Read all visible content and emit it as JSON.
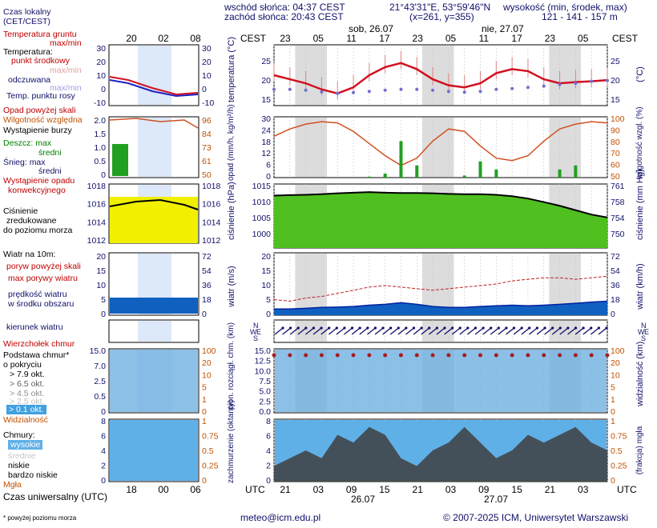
{
  "header": {
    "sunrise": "wschód słońca: 04:37 CEST",
    "sunset": "zachód słońca: 20:43 CEST",
    "coords": "21°43'31\"E, 53°59'46\"N",
    "grid": "(x=261,  y=355)",
    "elev_title": "wysokość (min, środek, max)",
    "elev_values": "121 - 141 - 157 m"
  },
  "left_legend": {
    "time_local": "Czas lokalny",
    "time_local2": "(CET/CEST)",
    "soil_temp": "Temperatura gruntu",
    "soil_minmax": "max/min",
    "temp_title": "Temperatura:",
    "temp_mid": "punkt środkowy",
    "temp_minmax": "max/min",
    "temp_felt": "odczuwana",
    "temp_felt_minmax": "max/min",
    "dewpoint": "Temp. punktu rosy",
    "precip_above": "Opad powyżej skali",
    "humidity": "Wilgotność względna",
    "storm": "Wystąpienie burzy",
    "rain_max": "Deszcz: max",
    "rain_mid": "średni",
    "snow_max": "Śnieg:  max",
    "snow_mid": "średni",
    "conv": "Wystąpienie opadu",
    "conv2": "konwekcyjnego",
    "pressure": "Ciśnienie",
    "pressure2": "zredukowane",
    "pressure3": "do poziomu morza",
    "wind_title": "Wiatr na 10m:",
    "gust_above": "poryw powyżej skali",
    "gust_max": "max porywy wiatru",
    "wind_speed": "prędkość wiatru",
    "wind_speed2": "w środku obszaru",
    "wind_dir": "kierunek wiatru",
    "cloud_top": "Wierzchołek chmur",
    "cloud_base": "Podstawa chmur*",
    "cloud_base2": "o pokryciu",
    "okt1": "> 7.9 okt.",
    "okt2": "> 6.5 okt.",
    "okt3": "> 4.5 okt.",
    "okt4": "> 2.5 okt.",
    "okt5": "> 0.1 okt.",
    "visibility": "Widzialność",
    "clouds": "Chmury:",
    "high": "wysokie",
    "mid": "średnie",
    "low": "niskie",
    "vlow": "bardzo niskie",
    "fog": "Mgła",
    "utc": "Czas uniwersalny (UTC)",
    "footnote": "* powyżej poziomu morza"
  },
  "top_axis": {
    "cest": "CEST",
    "day1": "sob, 26.07",
    "day2": "nie, 27.07",
    "hours": [
      "23",
      "05",
      "11",
      "17",
      "23",
      "05",
      "11",
      "17",
      "23",
      "05"
    ],
    "mini_hours": [
      "20",
      "02",
      "08"
    ]
  },
  "bottom_axis": {
    "utc": "UTC",
    "hours": [
      "21",
      "03",
      "09",
      "15",
      "21",
      "03",
      "09",
      "15",
      "21",
      "03"
    ],
    "date1": "26.07",
    "date2": "27.07",
    "mini_hours": [
      "18",
      "00",
      "06"
    ]
  },
  "axis_titles": {
    "temp_left": "temperatura (°C)",
    "temp_right": "(°C)",
    "precip_left": "opad (mm/h, kg/m²/h)",
    "precip_right": "wilgotność wzgl. (%)",
    "press_left": "ciśnienie (hPa)",
    "press_right": "ciśnienie (mm Hg)",
    "wind_left": "wiatr (m/s)",
    "wind_right": "wiatr (km/h)",
    "cloud_left": "pion. rozciągł. chm. (km)",
    "cloud_right": "widzialność (km)",
    "cover_left": "zachmurzenie (oktanty)",
    "cover_right": "(frakcja) mgła"
  },
  "ticks": {
    "temp_left": [
      "25",
      "20",
      "15"
    ],
    "temp_right": [
      "25",
      "20",
      "15"
    ],
    "mini_temp": [
      "30",
      "20",
      "10",
      "0",
      "-10"
    ],
    "precip_left": [
      "30",
      "24",
      "18",
      "12",
      "6",
      "0"
    ],
    "precip_right": [
      "100",
      "90",
      "80",
      "70",
      "60",
      "50"
    ],
    "mini_precip": [
      "2.0",
      "1.5",
      "1.0",
      "0.5",
      "0"
    ],
    "mini_hum": [
      "96",
      "84",
      "73",
      "61",
      "50"
    ],
    "press_left": [
      "1015",
      "1010",
      "1005",
      "1000"
    ],
    "press_right": [
      "761",
      "758",
      "754",
      "750"
    ],
    "mini_press": [
      "1018",
      "1016",
      "1014",
      "1012"
    ],
    "wind_left": [
      "20",
      "15",
      "10",
      "5",
      "0"
    ],
    "wind_right": [
      "72",
      "54",
      "36",
      "18",
      "0"
    ],
    "cloud_left": [
      "15.0",
      "12.5",
      "10.0",
      "7.5",
      "5.0",
      "2.5",
      "0.0"
    ],
    "cloud_right": [
      "100",
      "20",
      "10",
      "5",
      "1",
      "0"
    ],
    "mini_cloud": [
      "15.0",
      "7.0",
      "2.5",
      "0.5",
      "0"
    ],
    "cover_left": [
      "8",
      "6",
      "4",
      "2",
      "0"
    ],
    "cover_right": [
      "1",
      "0.75",
      "0.5",
      "0.25",
      "0"
    ],
    "compass": [
      "N",
      "W",
      "E",
      "S"
    ]
  },
  "footer": {
    "email": "meteo@icm.edu.pl",
    "copyright": "© 2007-2025 ICM, Uniwersytet Warszawski"
  },
  "colors": {
    "temp": "#d01020",
    "felt": "#2020c0",
    "dew": "#7070d0",
    "humidity": "#d05020",
    "rain": "#20a020",
    "pressure_fill": "#f0f000",
    "wind_fill": "#1060c0",
    "gust": "#c02020",
    "cloud_bg": "#70b0e0",
    "night": "#d8d8d8",
    "axis_text": "#10106a",
    "orange_text": "#c05000"
  },
  "chart_data": [
    {
      "type": "line",
      "title": "temperatura",
      "x_hours_utc": [
        15,
        18,
        21,
        0,
        3,
        6,
        9,
        12,
        15,
        18,
        21,
        0,
        3,
        6,
        9,
        12,
        15,
        18,
        21,
        0,
        3,
        6
      ],
      "series": [
        {
          "name": "punkt środkowy",
          "values": [
            20.5,
            19.5,
            18.5,
            17.0,
            16.0,
            17.5,
            20.5,
            22.5,
            23.5,
            22.0,
            19.5,
            18.0,
            17.5,
            18.5,
            21.0,
            22.0,
            21.5,
            19.5,
            18.5,
            18.8,
            19.0,
            19.3
          ]
        },
        {
          "name": "Temp. punktu rosy",
          "values": [
            17.0,
            17.0,
            16.8,
            16.4,
            16.0,
            16.2,
            16.5,
            16.8,
            17.0,
            17.0,
            16.8,
            16.5,
            16.3,
            16.5,
            17.0,
            17.2,
            17.5,
            17.8,
            18.2,
            18.5,
            19.0,
            19.2
          ]
        }
      ],
      "ylim": [
        13,
        28
      ]
    },
    {
      "type": "line",
      "title": "ciśnienie",
      "x_hours_utc": [
        15,
        18,
        21,
        0,
        3,
        6,
        9,
        12,
        15,
        18,
        21,
        0,
        3,
        6,
        9,
        12,
        15,
        18,
        21,
        0,
        3,
        6
      ],
      "series": [
        {
          "name": "Ciśnienie",
          "values": [
            1013.0,
            1013.2,
            1013.3,
            1013.5,
            1013.8,
            1014.0,
            1014.2,
            1014.0,
            1013.9,
            1013.9,
            1013.8,
            1013.6,
            1013.5,
            1013.5,
            1013.3,
            1012.8,
            1012.0,
            1010.8,
            1009.5,
            1008.0,
            1006.5,
            1005.5
          ]
        }
      ],
      "ylim": [
        995,
        1017
      ]
    },
    {
      "type": "line",
      "title": "wilgotność względna",
      "x_hours_utc": [
        15,
        18,
        21,
        0,
        3,
        6,
        9,
        12,
        15,
        18,
        21,
        0,
        3,
        6,
        9,
        12,
        15,
        18,
        21,
        0,
        3,
        6
      ],
      "series": [
        {
          "name": "Wilgotność względna",
          "values": [
            84,
            90,
            94,
            96,
            95,
            88,
            78,
            68,
            60,
            66,
            80,
            90,
            88,
            76,
            66,
            64,
            68,
            80,
            90,
            94,
            96,
            95
          ]
        }
      ],
      "ylim": [
        50,
        100
      ]
    },
    {
      "type": "area",
      "title": "wiatr",
      "x_hours_utc": [
        15,
        18,
        21,
        0,
        3,
        6,
        9,
        12,
        15,
        18,
        21,
        0,
        3,
        6,
        9,
        12,
        15,
        18,
        21,
        0,
        3,
        6
      ],
      "series": [
        {
          "name": "prędkość wiatru",
          "values": [
            2.0,
            2.0,
            2.2,
            2.5,
            2.6,
            2.8,
            3.2,
            3.5,
            4.0,
            3.5,
            2.8,
            2.5,
            2.5,
            2.8,
            3.0,
            3.2,
            3.0,
            3.2,
            3.5,
            3.8,
            4.2,
            4.5
          ]
        },
        {
          "name": "max porywy wiatru",
          "values": [
            5.0,
            4.5,
            5.5,
            6.0,
            7.0,
            8.0,
            9.0,
            9.5,
            9.0,
            8.5,
            8.0,
            8.5,
            9.0,
            9.5,
            10.0,
            11.0,
            11.5,
            12.0,
            12.0,
            11.5,
            12.0,
            12.5
          ]
        }
      ],
      "ylim": [
        0,
        20
      ]
    }
  ]
}
